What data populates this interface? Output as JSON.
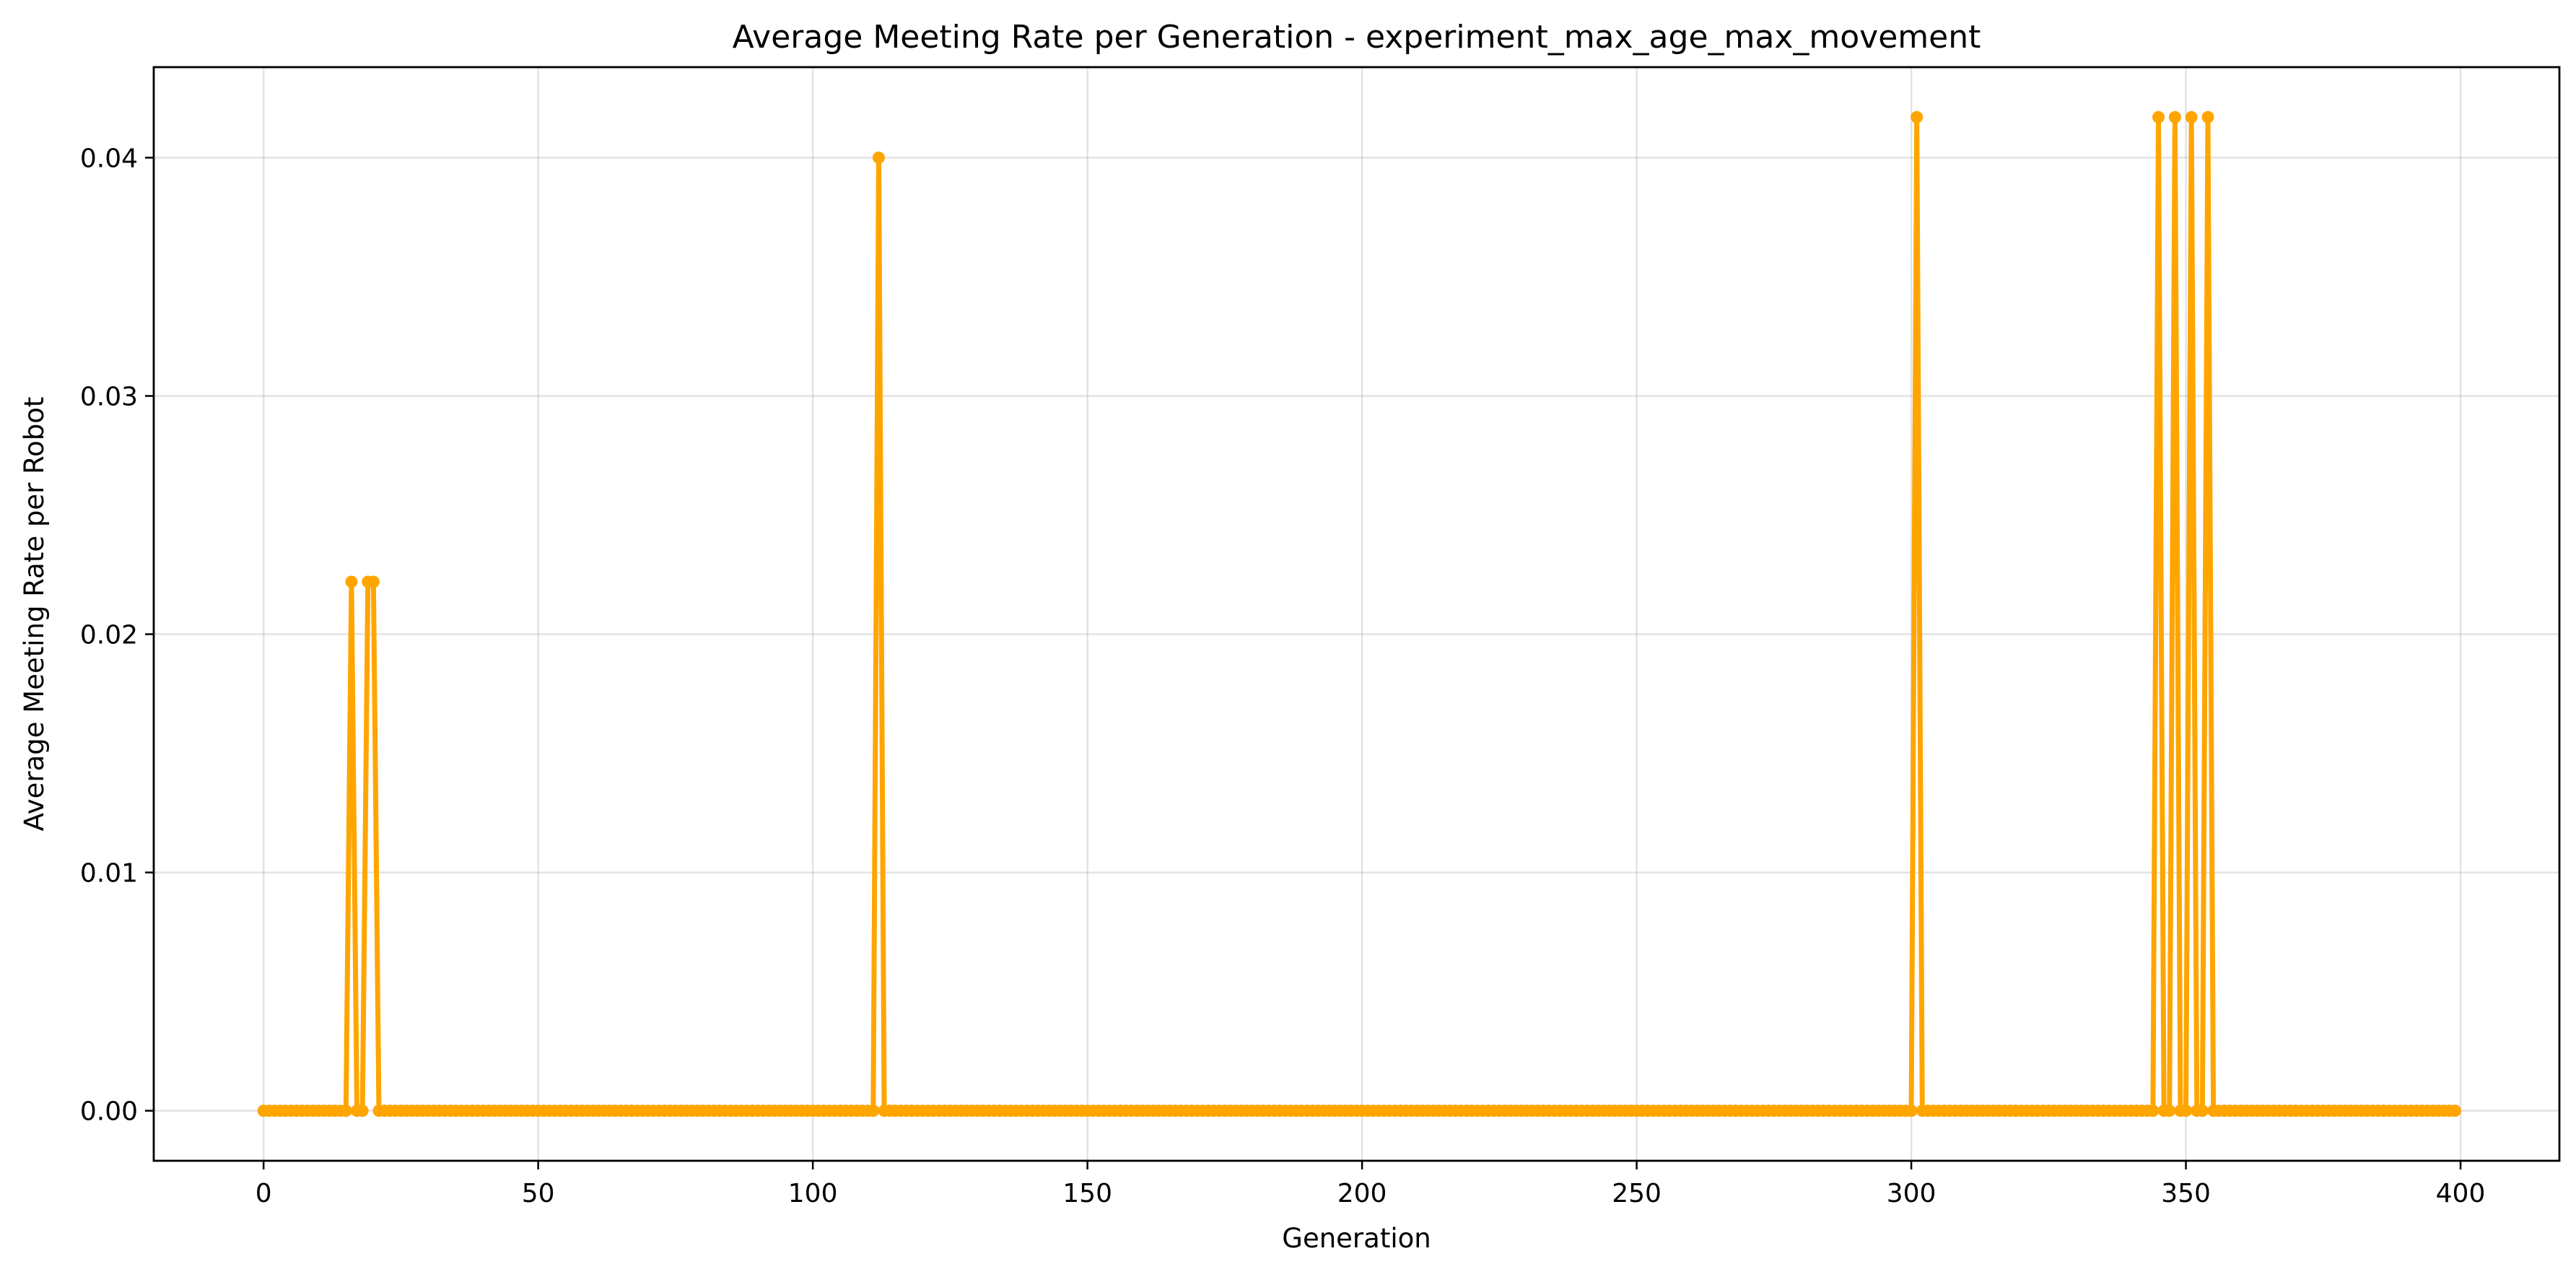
{
  "chart_data": {
    "type": "line",
    "title": "Average Meeting Rate per Generation - experiment_max_age_max_movement",
    "xlabel": "Generation",
    "ylabel": "Average Meeting Rate per Robot",
    "xlim": [
      -20,
      418
    ],
    "ylim": [
      -0.0021,
      0.0438
    ],
    "xticks": [
      0,
      50,
      100,
      150,
      200,
      250,
      300,
      350,
      400
    ],
    "xtick_labels": [
      "0",
      "50",
      "100",
      "150",
      "200",
      "250",
      "300",
      "350",
      "400"
    ],
    "yticks": [
      0.0,
      0.01,
      0.02,
      0.03,
      0.04
    ],
    "ytick_labels": [
      "0.00",
      "0.01",
      "0.02",
      "0.03",
      "0.04"
    ],
    "grid": true,
    "colors": {
      "series": "#FFA500"
    },
    "series": [
      {
        "x_start": 0,
        "x_end": 399,
        "baseline": 0.0,
        "nonzero_points": [
          {
            "x": 16,
            "y": 0.0222
          },
          {
            "x": 19,
            "y": 0.0222
          },
          {
            "x": 20,
            "y": 0.0222
          },
          {
            "x": 112,
            "y": 0.04
          },
          {
            "x": 301,
            "y": 0.0417
          },
          {
            "x": 345,
            "y": 0.0417
          },
          {
            "x": 348,
            "y": 0.0417
          },
          {
            "x": 351,
            "y": 0.0417
          },
          {
            "x": 354,
            "y": 0.0417
          }
        ]
      }
    ]
  }
}
